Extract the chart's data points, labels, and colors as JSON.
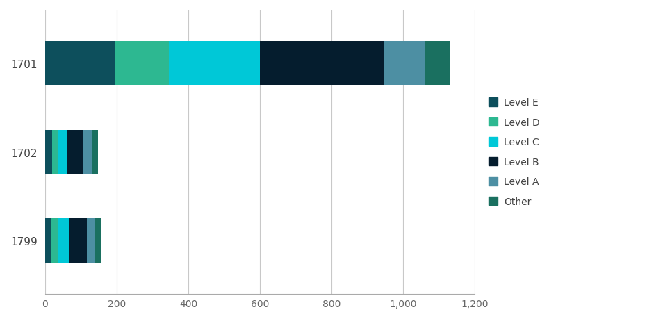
{
  "categories": [
    "1799",
    "1702",
    "1701"
  ],
  "levels": [
    "Level E",
    "Level D",
    "Level C",
    "Level B",
    "Level A",
    "Other"
  ],
  "colors": [
    "#0d4f5c",
    "#2db891",
    "#00c8d7",
    "#051d2e",
    "#4d8fa3",
    "#1a7060"
  ],
  "values": {
    "1701": [
      195,
      150,
      255,
      345,
      115,
      70
    ],
    "1702": [
      20,
      15,
      25,
      45,
      25,
      18
    ],
    "1799": [
      18,
      20,
      30,
      48,
      22,
      17
    ]
  },
  "xlim": [
    0,
    1200
  ],
  "xticks": [
    0,
    200,
    400,
    600,
    800,
    1000,
    1200
  ],
  "xticklabels": [
    "0",
    "200",
    "400",
    "600",
    "800",
    "1,000",
    "1,200"
  ],
  "background_color": "#ffffff",
  "grid_color": "#c8c8c8",
  "bar_height": 0.5,
  "figsize": [
    9.45,
    4.6
  ],
  "dpi": 100
}
